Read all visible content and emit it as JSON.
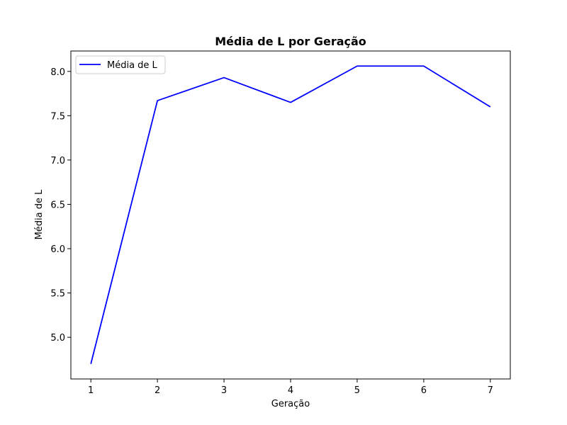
{
  "chart_data": {
    "type": "line",
    "title": "Média de L por Geração",
    "xlabel": "Geração",
    "ylabel": "Média de L",
    "x": [
      1,
      2,
      3,
      4,
      5,
      6,
      7
    ],
    "xticks": [
      "1",
      "2",
      "3",
      "4",
      "5",
      "6",
      "7"
    ],
    "yticks": [
      "5.0",
      "5.5",
      "6.0",
      "6.5",
      "7.0",
      "7.5",
      "8.0"
    ],
    "xlim": [
      0.7,
      7.3
    ],
    "ylim": [
      4.53,
      8.23
    ],
    "grid": false,
    "legend_position": "top-left",
    "series": [
      {
        "name": "Média de L",
        "color": "#0000ff",
        "values": [
          4.7,
          7.67,
          7.93,
          7.65,
          8.06,
          8.06,
          7.6
        ]
      }
    ]
  }
}
